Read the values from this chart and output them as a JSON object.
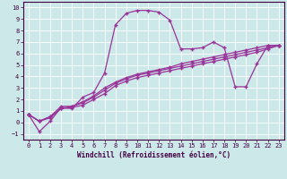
{
  "xlabel": "Windchill (Refroidissement éolien,°C)",
  "bg_color": "#cce8e8",
  "line_color": "#993399",
  "xlim": [
    -0.5,
    23.5
  ],
  "ylim": [
    -1.5,
    10.5
  ],
  "xticks": [
    0,
    1,
    2,
    3,
    4,
    5,
    6,
    7,
    8,
    9,
    10,
    11,
    12,
    13,
    14,
    15,
    16,
    17,
    18,
    19,
    20,
    21,
    22,
    23
  ],
  "yticks": [
    -1,
    0,
    1,
    2,
    3,
    4,
    5,
    6,
    7,
    8,
    9,
    10
  ],
  "series1_x": [
    0,
    1,
    2,
    3,
    4,
    5,
    6,
    7,
    8,
    9,
    10,
    11,
    12,
    13,
    14,
    15,
    16,
    17,
    18,
    19,
    20,
    21,
    22,
    23
  ],
  "series1_y": [
    0.7,
    -0.8,
    0.1,
    1.3,
    1.2,
    2.2,
    2.6,
    4.3,
    8.5,
    9.5,
    9.75,
    9.75,
    9.6,
    8.9,
    6.4,
    6.4,
    6.5,
    7.0,
    6.5,
    3.1,
    3.1,
    5.1,
    6.7,
    6.7
  ],
  "series2_x": [
    0,
    1,
    2,
    3,
    4,
    5,
    6,
    7,
    8,
    9,
    10,
    11,
    12,
    13,
    14,
    15,
    16,
    17,
    18,
    19,
    20,
    21,
    22,
    23
  ],
  "series2_y": [
    0.7,
    0.1,
    0.4,
    1.2,
    1.3,
    1.5,
    2.0,
    2.5,
    3.2,
    3.6,
    3.9,
    4.1,
    4.3,
    4.5,
    4.7,
    4.9,
    5.1,
    5.3,
    5.5,
    5.7,
    5.9,
    6.1,
    6.4,
    6.7
  ],
  "series3_x": [
    0,
    1,
    2,
    3,
    4,
    5,
    6,
    7,
    8,
    9,
    10,
    11,
    12,
    13,
    14,
    15,
    16,
    17,
    18,
    19,
    20,
    21,
    22,
    23
  ],
  "series3_y": [
    0.7,
    0.1,
    0.5,
    1.4,
    1.4,
    1.7,
    2.2,
    2.8,
    3.4,
    3.8,
    4.1,
    4.3,
    4.5,
    4.7,
    4.9,
    5.1,
    5.3,
    5.5,
    5.7,
    5.9,
    6.1,
    6.3,
    6.5,
    6.7
  ],
  "series4_x": [
    0,
    1,
    2,
    3,
    4,
    5,
    6,
    7,
    8,
    9,
    10,
    11,
    12,
    13,
    14,
    15,
    16,
    17,
    18,
    19,
    20,
    21,
    22,
    23
  ],
  "series4_y": [
    0.7,
    0.1,
    0.5,
    1.2,
    1.4,
    1.8,
    2.3,
    3.0,
    3.5,
    3.9,
    4.2,
    4.4,
    4.6,
    4.8,
    5.1,
    5.3,
    5.5,
    5.7,
    5.9,
    6.1,
    6.3,
    6.5,
    6.7,
    6.7
  ]
}
